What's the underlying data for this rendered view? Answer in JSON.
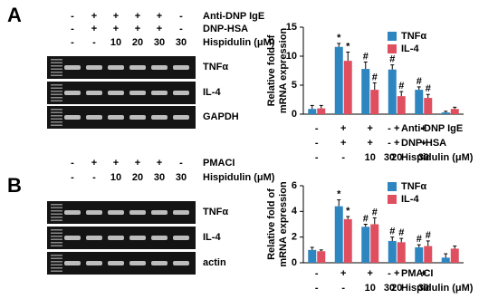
{
  "figure": {
    "panels": [
      {
        "label": "A",
        "gel": {
          "treatments": [
            {
              "label": "Anti-DNP IgE",
              "cells": [
                "-",
                "+",
                "+",
                "+",
                "+",
                "-"
              ]
            },
            {
              "label": "DNP-HSA",
              "cells": [
                "-",
                "+",
                "+",
                "+",
                "+",
                "-"
              ]
            },
            {
              "label": "Hispidulin (μM)",
              "cells": [
                "-",
                "-",
                "10",
                "20",
                "30",
                "30"
              ]
            }
          ],
          "bands": [
            "TNFα",
            "IL-4",
            "GAPDH"
          ]
        }
      },
      {
        "label": "B",
        "gel": {
          "treatments": [
            {
              "label": "PMACI",
              "cells": [
                "-",
                "+",
                "+",
                "+",
                "+",
                "-"
              ]
            },
            {
              "label": "Hispidulin (μM)",
              "cells": [
                "-",
                "-",
                "10",
                "20",
                "30",
                "30"
              ]
            }
          ],
          "bands": [
            "TNFα",
            "IL-4",
            "actin"
          ]
        }
      }
    ]
  },
  "chart_data": [
    {
      "type": "bar",
      "y_label": [
        "Relative fold of",
        "mRNA expression"
      ],
      "ylim": [
        0,
        15
      ],
      "yticks": [
        0,
        5,
        10,
        15
      ],
      "legend": "top-right",
      "series": [
        {
          "name": "TNFα",
          "color": "#2e86c1",
          "values": [
            0.9,
            11.6,
            7.8,
            7.7,
            4.2,
            0.3
          ],
          "errors": [
            0.6,
            0.6,
            1.2,
            0.8,
            0.5,
            0.2
          ],
          "markers": [
            null,
            "*",
            "#",
            "#",
            "#",
            null
          ]
        },
        {
          "name": "IL-4",
          "color": "#e04f5f",
          "values": [
            1.0,
            9.2,
            4.2,
            3.1,
            2.8,
            0.9
          ],
          "errors": [
            0.5,
            1.5,
            1.2,
            0.8,
            0.6,
            0.3
          ],
          "markers": [
            null,
            "*",
            "#",
            "#",
            "#",
            null
          ]
        }
      ],
      "treatments": [
        {
          "label": "Anti-DNP IgE",
          "cells": [
            "-",
            "+",
            "+",
            "+",
            "+",
            "-"
          ]
        },
        {
          "label": "DNP-HSA",
          "cells": [
            "-",
            "+",
            "+",
            "+",
            "+",
            "-"
          ]
        },
        {
          "label": "Hispidulin (μM)",
          "cells": [
            "-",
            "-",
            "10",
            "20",
            "30",
            "30"
          ]
        }
      ]
    },
    {
      "type": "bar",
      "y_label": [
        "Relative fold of",
        "mRNA expression"
      ],
      "ylim": [
        0,
        6
      ],
      "yticks": [
        0,
        2,
        4,
        6
      ],
      "legend": "top-right",
      "series": [
        {
          "name": "TNFα",
          "color": "#2e86c1",
          "values": [
            1.0,
            4.4,
            2.8,
            1.7,
            1.2,
            0.4
          ],
          "errors": [
            0.2,
            0.5,
            0.2,
            0.3,
            0.2,
            0.3
          ],
          "markers": [
            null,
            "*",
            "#",
            "#",
            "#",
            null
          ]
        },
        {
          "name": "IL-4",
          "color": "#e04f5f",
          "values": [
            0.9,
            3.4,
            3.0,
            1.6,
            1.3,
            1.1
          ],
          "errors": [
            0.1,
            0.2,
            0.5,
            0.3,
            0.4,
            0.2
          ],
          "markers": [
            null,
            "*",
            "#",
            "#",
            "#",
            null
          ]
        }
      ],
      "treatments": [
        {
          "label": "PMACI",
          "cells": [
            "-",
            "+",
            "+",
            "+",
            "+",
            "-"
          ]
        },
        {
          "label": "Hispidulin (μM)",
          "cells": [
            "-",
            "-",
            "10",
            "20",
            "30",
            "30"
          ]
        }
      ]
    }
  ]
}
